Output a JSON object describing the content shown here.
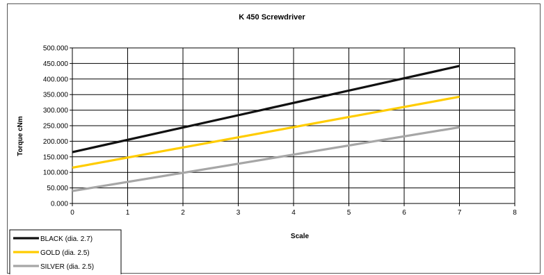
{
  "chart_data": {
    "type": "line",
    "title": "K 450 Screwdriver",
    "xlabel": "Scale",
    "ylabel": "Torque cNm",
    "xlim": [
      0,
      8
    ],
    "ylim": [
      0,
      500
    ],
    "x_ticks": [
      "0",
      "1",
      "2",
      "3",
      "4",
      "5",
      "6",
      "7",
      "8"
    ],
    "y_ticks": [
      "0.000",
      "50.000",
      "100.000",
      "150.000",
      "200.000",
      "250.000",
      "300.000",
      "350.000",
      "400.000",
      "450.000",
      "500.000"
    ],
    "grid": true,
    "legend_position": "bottom-left",
    "series": [
      {
        "name": "BLACK (dia. 2.7)",
        "color": "#111111",
        "x": [
          0,
          7
        ],
        "y": [
          165,
          442
        ]
      },
      {
        "name": "GOLD (dia. 2.5)",
        "color": "#ffcc00",
        "x": [
          0,
          7
        ],
        "y": [
          115,
          343
        ]
      },
      {
        "name": "SILVER (dia. 2.5)",
        "color": "#a6a6a6",
        "x": [
          0,
          7
        ],
        "y": [
          40,
          245
        ]
      }
    ]
  }
}
